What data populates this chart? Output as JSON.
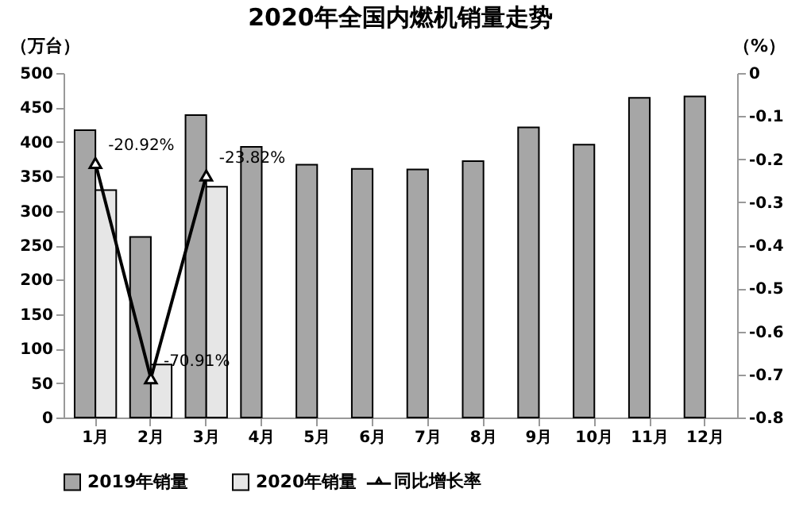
{
  "chart_data": {
    "type": "bar",
    "title": "2020年全国内燃机销量走势",
    "ylabel": "（万台）",
    "y2label": "（%）",
    "categories": [
      "1月",
      "2月",
      "3月",
      "4月",
      "5月",
      "6月",
      "7月",
      "8月",
      "9月",
      "10月",
      "11月",
      "12月"
    ],
    "series": [
      {
        "name": "2019年销量",
        "color": "#a6a6a6",
        "values": [
          417,
          262,
          439,
          393,
          367,
          361,
          360,
          372,
          421,
          396,
          464,
          466
        ]
      },
      {
        "name": "2020年销量",
        "color": "#e6e6e6",
        "values": [
          330,
          77,
          335,
          null,
          null,
          null,
          null,
          null,
          null,
          null,
          null,
          null
        ]
      },
      {
        "name": "同比增长率",
        "type": "line",
        "axis": "y2",
        "color": "#000000",
        "values": [
          -0.2092,
          -0.7091,
          -0.2382,
          null,
          null,
          null,
          null,
          null,
          null,
          null,
          null,
          null
        ],
        "value_labels": [
          "-20.92%",
          "-70.91%",
          "-23.82%",
          null,
          null,
          null,
          null,
          null,
          null,
          null,
          null,
          null
        ]
      }
    ],
    "ylim": [
      0,
      500
    ],
    "yticks": [
      0,
      50,
      100,
      150,
      200,
      250,
      300,
      350,
      400,
      450,
      500
    ],
    "y2lim": [
      -0.8,
      0
    ],
    "y2ticks": [
      -0.8,
      -0.7,
      -0.6,
      -0.5,
      -0.4,
      -0.3,
      -0.2,
      -0.1,
      0
    ],
    "marker": "triangle",
    "legend": "bottom"
  }
}
